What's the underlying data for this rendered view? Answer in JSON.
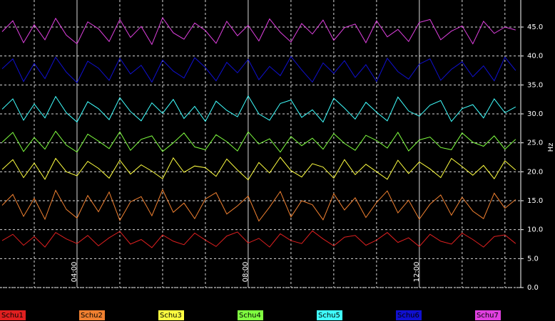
{
  "chart_data": {
    "type": "line",
    "y_label": "Hz",
    "x": [
      2.25,
      2.5,
      2.75,
      3,
      3.25,
      3.5,
      3.75,
      4,
      4.25,
      4.5,
      4.75,
      5,
      5.25,
      5.5,
      5.75,
      6,
      6.25,
      6.5,
      6.75,
      7,
      7.25,
      7.5,
      7.75,
      8,
      8.25,
      8.5,
      8.75,
      9,
      9.25,
      9.5,
      9.75,
      10,
      10.25,
      10.5,
      10.75,
      11,
      11.25,
      11.5,
      11.75,
      12,
      12.25,
      12.5,
      12.75,
      13,
      13.25,
      13.5,
      13.75,
      14,
      14.25
    ],
    "xlim": [
      2.2,
      14.37
    ],
    "xticks": [
      {
        "value": 3,
        "label": null
      },
      {
        "value": 4,
        "label": "04:00"
      },
      {
        "value": 5,
        "label": null
      },
      {
        "value": 6,
        "label": null
      },
      {
        "value": 7,
        "label": null
      },
      {
        "value": 8,
        "label": "08:00"
      },
      {
        "value": 9,
        "label": null
      },
      {
        "value": 10,
        "label": null
      },
      {
        "value": 11,
        "label": null
      },
      {
        "value": 12,
        "label": "12:00"
      },
      {
        "value": 13,
        "label": null
      },
      {
        "value": 14,
        "label": null
      }
    ],
    "ylim": [
      0,
      49.7
    ],
    "yticks": [
      {
        "value": 0,
        "label": "0.0"
      },
      {
        "value": 5,
        "label": "5.0"
      },
      {
        "value": 10,
        "label": "10.0"
      },
      {
        "value": 15,
        "label": "15.0"
      },
      {
        "value": 20,
        "label": "20.0"
      },
      {
        "value": 25,
        "label": "25.0"
      },
      {
        "value": 30,
        "label": "30.0"
      },
      {
        "value": 35,
        "label": "35.0"
      },
      {
        "value": 40,
        "label": "40.0"
      },
      {
        "value": 45,
        "label": "45.0"
      }
    ],
    "grid": true,
    "legend": "bottom",
    "series": [
      {
        "name": "Schu1",
        "color": "#e02020",
        "values": [
          8.1,
          9.2,
          7.3,
          8.8,
          7.0,
          9.5,
          8.4,
          7.6,
          9.0,
          7.2,
          8.6,
          9.7,
          7.5,
          8.3,
          6.9,
          9.1,
          8.0,
          7.4,
          9.4,
          8.2,
          7.1,
          8.9,
          9.6,
          7.7,
          8.5,
          7.0,
          9.3,
          8.1,
          7.6,
          9.8,
          8.4,
          7.2,
          8.7,
          9.0,
          7.3,
          8.2,
          9.5,
          7.8,
          8.6,
          7.1,
          9.2,
          8.0,
          7.5,
          9.4,
          8.3,
          7.0,
          8.8,
          9.1,
          7.6
        ]
      },
      {
        "name": "Schu2",
        "color": "#f08030",
        "values": [
          14.2,
          16.1,
          12.3,
          15.4,
          11.8,
          16.8,
          13.5,
          12.0,
          15.9,
          13.1,
          16.5,
          11.6,
          14.8,
          15.7,
          12.4,
          16.9,
          13.0,
          14.6,
          11.9,
          15.3,
          16.4,
          12.7,
          14.1,
          15.8,
          11.5,
          13.9,
          16.6,
          12.2,
          15.0,
          14.3,
          11.7,
          16.2,
          13.4,
          15.5,
          12.1,
          14.7,
          16.7,
          12.9,
          15.1,
          11.8,
          14.4,
          16.0,
          12.5,
          15.6,
          13.2,
          11.9,
          16.3,
          13.7,
          15.2
        ]
      },
      {
        "name": "Schu3",
        "color": "#ffff40",
        "values": [
          20.4,
          22.1,
          19.0,
          21.5,
          18.7,
          22.3,
          20.0,
          19.3,
          21.8,
          20.6,
          18.9,
          22.0,
          19.6,
          21.2,
          20.1,
          18.8,
          22.4,
          19.9,
          21.0,
          20.7,
          19.2,
          22.2,
          20.3,
          18.6,
          21.6,
          19.8,
          22.5,
          20.2,
          19.1,
          21.4,
          20.8,
          18.9,
          22.1,
          19.5,
          21.3,
          20.0,
          18.7,
          22.0,
          19.7,
          21.7,
          20.5,
          19.0,
          22.3,
          20.9,
          19.4,
          21.1,
          18.8,
          21.9,
          20.3
        ]
      },
      {
        "name": "Schu4",
        "color": "#80ff40",
        "values": [
          25.1,
          26.8,
          23.5,
          25.9,
          23.9,
          27.0,
          24.6,
          23.4,
          26.5,
          25.3,
          24.0,
          26.9,
          23.7,
          25.6,
          26.2,
          23.5,
          25.0,
          26.7,
          24.3,
          23.8,
          26.4,
          25.2,
          23.6,
          26.9,
          24.8,
          25.7,
          23.4,
          26.1,
          24.5,
          25.8,
          23.9,
          26.6,
          24.9,
          23.7,
          26.3,
          25.4,
          24.1,
          26.8,
          23.6,
          25.5,
          26.0,
          24.2,
          23.8,
          26.7,
          25.1,
          24.4,
          26.2,
          23.9,
          25.6
        ]
      },
      {
        "name": "Schu5",
        "color": "#40ffff",
        "values": [
          30.8,
          32.6,
          28.9,
          31.7,
          29.3,
          33.0,
          30.2,
          28.6,
          32.1,
          30.9,
          29.0,
          32.8,
          30.4,
          28.8,
          31.9,
          30.1,
          32.5,
          29.2,
          31.3,
          28.7,
          32.2,
          30.6,
          29.5,
          33.1,
          30.0,
          28.9,
          31.8,
          32.4,
          29.4,
          30.7,
          28.6,
          32.7,
          31.0,
          29.1,
          32.0,
          30.3,
          28.8,
          32.9,
          30.5,
          29.6,
          31.5,
          32.3,
          28.7,
          30.9,
          31.6,
          29.3,
          32.6,
          30.2,
          31.2
        ]
      },
      {
        "name": "Schu6",
        "color": "#1010d0",
        "values": [
          37.8,
          39.5,
          35.6,
          38.7,
          36.1,
          39.8,
          37.2,
          35.4,
          39.1,
          37.9,
          35.8,
          39.6,
          36.9,
          38.4,
          35.5,
          39.3,
          37.4,
          36.2,
          39.7,
          38.0,
          35.7,
          38.9,
          37.1,
          39.4,
          35.9,
          38.2,
          36.6,
          39.9,
          37.6,
          35.5,
          38.8,
          37.0,
          39.2,
          36.3,
          38.5,
          35.6,
          39.6,
          37.3,
          36.0,
          38.6,
          39.5,
          35.8,
          37.7,
          39.0,
          36.4,
          38.3,
          35.7,
          39.8,
          37.5
        ]
      },
      {
        "name": "Schu7",
        "color": "#e040e0",
        "values": [
          44.2,
          46.1,
          42.3,
          45.4,
          42.8,
          46.5,
          43.6,
          42.1,
          45.9,
          44.7,
          42.5,
          46.3,
          43.2,
          45.1,
          42.0,
          46.6,
          44.0,
          42.9,
          45.7,
          44.4,
          42.2,
          46.0,
          43.5,
          45.3,
          42.6,
          46.4,
          44.1,
          42.4,
          45.6,
          43.8,
          46.2,
          42.7,
          44.9,
          45.5,
          42.3,
          46.1,
          43.3,
          44.6,
          42.5,
          45.8,
          46.3,
          42.8,
          44.3,
          45.2,
          42.1,
          46.0,
          43.9,
          45.0,
          44.5
        ]
      }
    ]
  }
}
